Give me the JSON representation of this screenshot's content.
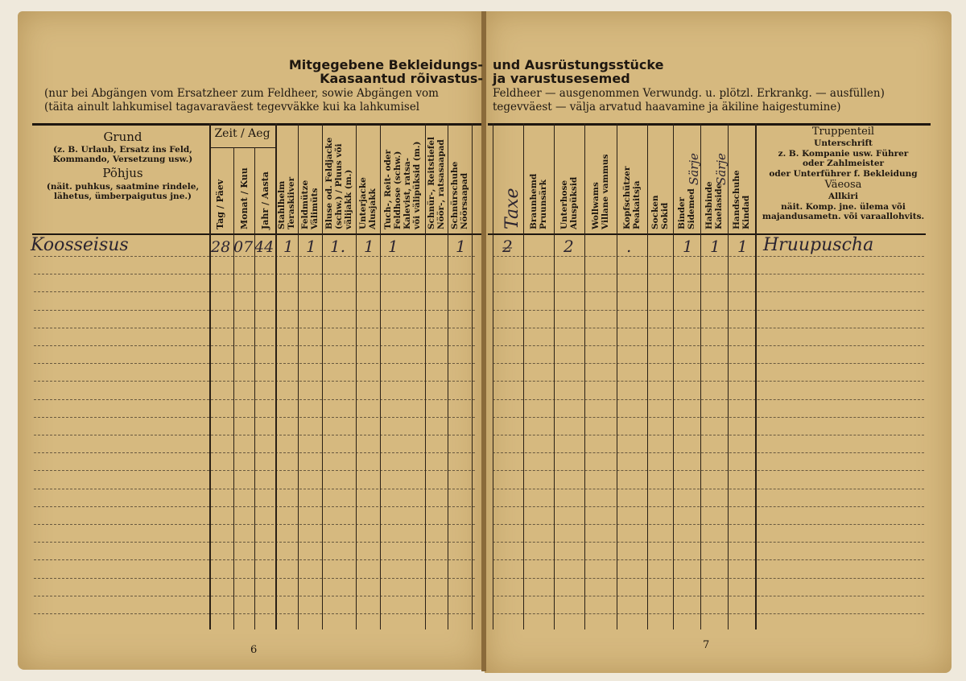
{
  "left_page": {
    "title_line1": "Mitgegebene Bekleidungs-",
    "title_line2": "Kaasaantud rõivastus-",
    "sub_line1": "(nur bei Abgängen vom Ersatzheer zum Feldheer, sowie Abgängen vom",
    "sub_line2": "(täita ainult lahkumisel tagavaraväest tegevväkke kui ka lahkumisel",
    "grund_title": "Grund",
    "grund_desc": "(z. B. Urlaub, Ersatz ins Feld, Kommando, Versetzung usw.)",
    "pohjus_title": "Põhjus",
    "pohjus_desc": "(näit. puhkus, saatmine rindele, lähetus, ümberpaigutus jne.)",
    "zeit_title": "Zeit / Aeg",
    "zeit_cols": [
      "Tag / Päev",
      "Monat / Kuu",
      "Jahr / Aasta"
    ],
    "item_cols": [
      [
        "Stahlhelm",
        "Teraskiiver"
      ],
      [
        "Feldmütze",
        "Välimüts"
      ],
      [
        "Bluse od. Feldjacke",
        "(schw.) / Pluus või",
        "välijakk (m.)"
      ],
      [
        "Unterjacke",
        "Alusjakk"
      ],
      [
        "Tuch-, Reit- oder",
        "Feldhose (schw.)",
        "Kalevist, ratsa-",
        "või välipüksid (m.)"
      ],
      [
        "Schnür-, Reitstiefel",
        "Nöör-, ratsasaapad"
      ],
      [
        "Schnürschuhe",
        "Nöörsaapad"
      ]
    ],
    "entry": {
      "grund": "Koosseisus",
      "day": "28",
      "month": "07",
      "year": "44",
      "items": [
        "1",
        "1",
        "1.",
        "1",
        "1",
        "",
        "1"
      ]
    },
    "page_number": "6"
  },
  "right_page": {
    "title_line1": "und Ausrüstungsstücke",
    "title_line2": "ja varustusesemed",
    "sub_line1": "Feldheer — ausgenommen Verwundg. u. plötzl. Erkrankg. — ausfüllen)",
    "sub_line2": "tegevväest — välja arvatud haavamine ja äkiline haigestumine)",
    "item_cols": [
      [
        "Taxe"
      ],
      [
        "Braunhemd",
        "Pruunsärk"
      ],
      [
        "Unterhose",
        "Aluspüksid"
      ],
      [
        "Wollwams",
        "Villane vammus"
      ],
      [
        "Kopfschützer",
        "Peakaitsja"
      ],
      [
        "Socken",
        "Sokid"
      ],
      [
        "Binder",
        "Sidemed"
      ],
      [
        "Halsbinde",
        "Kaelaside"
      ],
      [
        "Handschuhe",
        "Kindad"
      ]
    ],
    "handwritten_headers": [
      "Särje",
      "Särje"
    ],
    "truppenteil": [
      "Truppenteil",
      "Unterschrift",
      "z. B. Kompanie usw. Führer",
      "oder Zahlmeister",
      "oder Unterführer f. Bekleidung",
      "Väeosa",
      "Allkiri",
      "näit. Komp. jne. ülema või majandusametn. või varaallohvits."
    ],
    "entry": {
      "items": [
        "2̶",
        "",
        "2",
        "",
        ".",
        "",
        "1",
        "1",
        "1"
      ],
      "signature": "Hruupuscha"
    },
    "page_number": "7"
  },
  "colors": {
    "paper": "#d6b97f",
    "ink": "#1e1710",
    "handwriting": "#2b2430"
  }
}
